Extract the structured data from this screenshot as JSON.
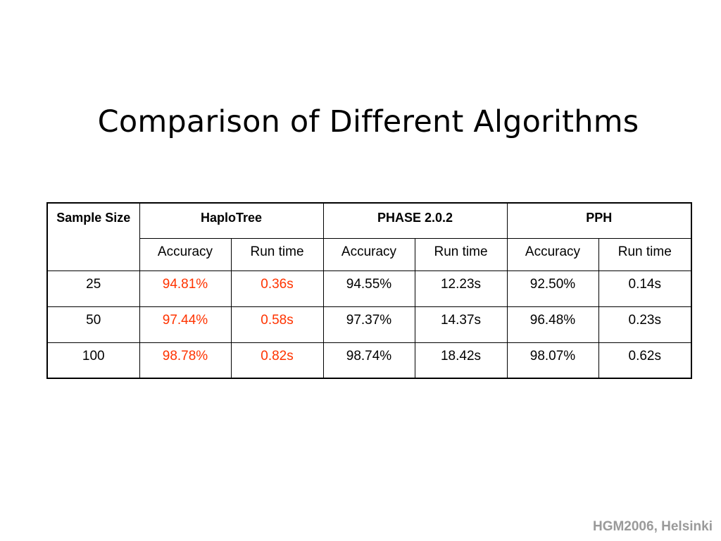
{
  "slide": {
    "title": "Comparison of Different Algorithms",
    "footer": "HGM2006, Helsinki"
  },
  "table": {
    "sample_header": "Sample Size",
    "groups": [
      "HaploTree",
      "PHASE 2.0.2",
      "PPH"
    ],
    "subheaders": [
      "Accuracy",
      "Run time",
      "Accuracy",
      "Run time",
      "Accuracy",
      "Run time"
    ],
    "rows": [
      [
        "25",
        "94.81%",
        "0.36s",
        "94.55%",
        "12.23s",
        "92.50%",
        "0.14s"
      ],
      [
        "50",
        "97.44%",
        "0.58s",
        "97.37%",
        "14.37s",
        "96.48%",
        "0.23s"
      ],
      [
        "100",
        "98.78%",
        "0.82s",
        "98.74%",
        "18.42s",
        "98.07%",
        "0.62s"
      ]
    ],
    "highlight_color": "#ff3300"
  }
}
